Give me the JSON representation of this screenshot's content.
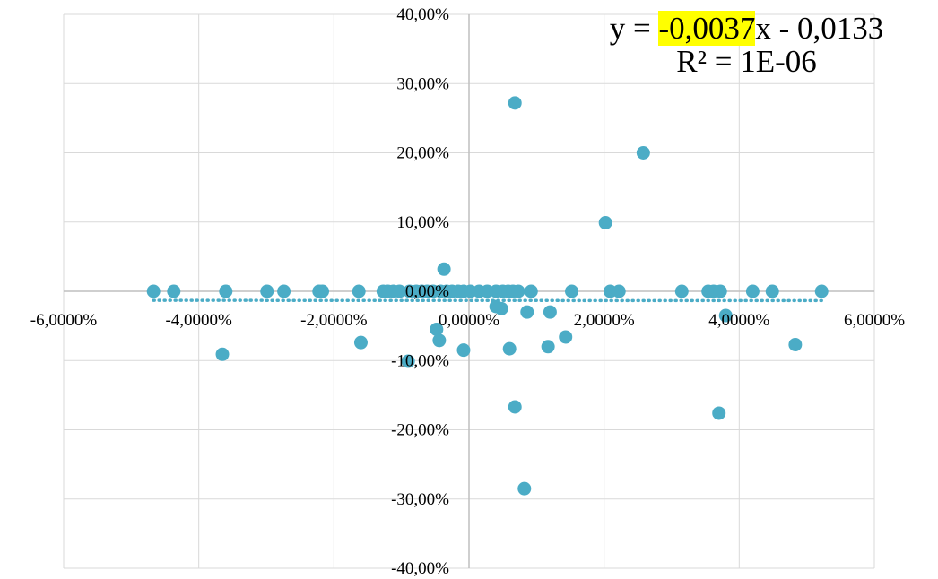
{
  "chart_data": {
    "type": "scatter",
    "title": "",
    "xlabel": "",
    "ylabel": "",
    "xlim": [
      -0.06,
      0.06
    ],
    "ylim": [
      -0.4,
      0.4
    ],
    "x_ticks": [
      -0.06,
      -0.04,
      -0.02,
      0.0,
      0.02,
      0.04,
      0.06
    ],
    "x_tick_labels": [
      "-6,0000%",
      "-4,0000%",
      "-2,0000%",
      "0,0000%",
      "2,0000%",
      "4,0000%",
      "6,0000%"
    ],
    "y_ticks": [
      0.4,
      0.3,
      0.2,
      0.1,
      0.0,
      -0.1,
      -0.2,
      -0.3,
      -0.4
    ],
    "y_tick_labels": [
      "40,00%",
      "30,00%",
      "20,00%",
      "10,00%",
      "0,00%",
      "-10,00%",
      "-20,00%",
      "-30,00%",
      "-40,00%"
    ],
    "grid": true,
    "legend": "none",
    "colors": {
      "points": "#4bacc6",
      "trendline": "#4bacc6",
      "grid": "#d9d9d9",
      "axis": "#bfbfbf",
      "highlight": "#ffff00"
    },
    "trendline": {
      "style": "dotted",
      "slope": -0.0037,
      "intercept": -0.0133,
      "equation_prefix": "y = ",
      "equation_slope": "-0,0037",
      "equation_suffix": "x - 0,0133",
      "r2_label": "R² = 1E-06"
    },
    "series": [
      {
        "points": [
          [
            -0.0467,
            0
          ],
          [
            -0.0437,
            0
          ],
          [
            -0.036,
            0
          ],
          [
            -0.0299,
            0
          ],
          [
            -0.0274,
            0
          ],
          [
            -0.0222,
            0
          ],
          [
            -0.0217,
            0
          ],
          [
            -0.0163,
            0
          ],
          [
            -0.0127,
            0
          ],
          [
            -0.012,
            0
          ],
          [
            -0.0112,
            0
          ],
          [
            -0.0103,
            0
          ],
          [
            -0.0088,
            0
          ],
          [
            -0.0078,
            0
          ],
          [
            -0.007,
            0
          ],
          [
            -0.0062,
            0
          ],
          [
            -0.0053,
            0
          ],
          [
            -0.0042,
            0
          ],
          [
            -0.0033,
            0
          ],
          [
            -0.0025,
            0
          ],
          [
            -0.0016,
            0
          ],
          [
            -0.0008,
            0
          ],
          [
            0.0002,
            0
          ],
          [
            0.0015,
            0
          ],
          [
            0.0027,
            0
          ],
          [
            0.004,
            0
          ],
          [
            0.005,
            0
          ],
          [
            0.0058,
            0
          ],
          [
            0.0065,
            0
          ],
          [
            0.0073,
            0
          ],
          [
            0.0092,
            0
          ],
          [
            0.0152,
            0
          ],
          [
            0.0209,
            0
          ],
          [
            0.0222,
            0
          ],
          [
            0.0315,
            0
          ],
          [
            0.0354,
            0
          ],
          [
            0.0362,
            0
          ],
          [
            0.0372,
            0
          ],
          [
            0.042,
            0
          ],
          [
            0.0449,
            0
          ],
          [
            0.0522,
            0
          ],
          [
            -0.0037,
            0.032
          ],
          [
            0.0068,
            0.272
          ],
          [
            0.0258,
            0.2
          ],
          [
            0.0202,
            0.099
          ],
          [
            0.004,
            -0.022
          ],
          [
            0.0048,
            -0.025
          ],
          [
            0.0086,
            -0.03
          ],
          [
            0.012,
            -0.03
          ],
          [
            0.038,
            -0.035
          ],
          [
            -0.0048,
            -0.055
          ],
          [
            -0.0044,
            -0.071
          ],
          [
            -0.016,
            -0.074
          ],
          [
            0.0143,
            -0.066
          ],
          [
            0.0117,
            -0.08
          ],
          [
            0.006,
            -0.083
          ],
          [
            -0.0008,
            -0.085
          ],
          [
            -0.0365,
            -0.091
          ],
          [
            -0.009,
            -0.101
          ],
          [
            0.0483,
            -0.077
          ],
          [
            0.0068,
            -0.167
          ],
          [
            0.037,
            -0.176
          ],
          [
            0.0082,
            -0.285
          ]
        ]
      }
    ]
  }
}
